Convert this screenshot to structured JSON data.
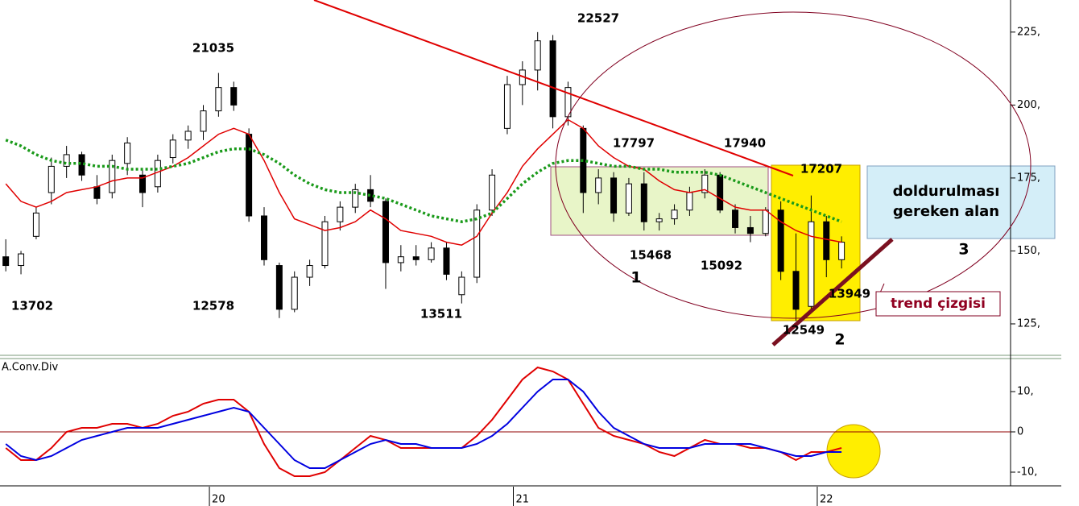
{
  "chart_data": [
    {
      "type": "candlestick",
      "x": [
        19.33,
        19.38,
        19.43,
        19.48,
        19.53,
        19.58,
        19.63,
        19.68,
        19.73,
        19.78,
        19.83,
        19.88,
        19.93,
        19.98,
        20.03,
        20.08,
        20.13,
        20.18,
        20.23,
        20.28,
        20.33,
        20.38,
        20.43,
        20.48,
        20.53,
        20.58,
        20.63,
        20.68,
        20.73,
        20.78,
        20.83,
        20.88,
        20.93,
        20.98,
        21.03,
        21.08,
        21.13,
        21.18,
        21.23,
        21.28,
        21.33,
        21.38,
        21.43,
        21.48,
        21.53,
        21.58,
        21.63,
        21.68,
        21.73,
        21.78,
        21.83,
        21.88,
        21.93,
        21.98,
        22.03,
        22.08
      ],
      "open": [
        148,
        145,
        155,
        170,
        179,
        183,
        172,
        170,
        180,
        176,
        172,
        182,
        188,
        191,
        198,
        206,
        190,
        162,
        145,
        130,
        141,
        145,
        160,
        165,
        171,
        167,
        146,
        148,
        147,
        151,
        135,
        141,
        164,
        192,
        207,
        212,
        222,
        196,
        192,
        170,
        175,
        163,
        173,
        160,
        161,
        164,
        170,
        176,
        164,
        158,
        156,
        164,
        143,
        131,
        160,
        147
      ],
      "high": [
        154,
        150,
        165,
        182,
        186,
        184,
        176,
        183,
        189,
        178,
        183,
        190,
        193,
        200,
        211,
        208,
        192,
        165,
        146,
        143,
        147,
        162,
        167,
        173,
        176,
        168,
        152,
        152,
        153,
        153,
        143,
        166,
        178,
        210,
        215,
        225,
        224,
        208,
        193,
        178,
        177,
        175,
        177,
        163,
        166,
        172,
        178,
        177,
        166,
        162,
        165,
        167,
        156,
        169,
        162,
        155
      ],
      "low": [
        143,
        142,
        154,
        166,
        175,
        174,
        166,
        168,
        176,
        165,
        170,
        180,
        185,
        188,
        196,
        198,
        160,
        145,
        127,
        129,
        138,
        144,
        157,
        163,
        165,
        137,
        143,
        145,
        146,
        140,
        132,
        139,
        162,
        190,
        200,
        205,
        192,
        193,
        163,
        166,
        160,
        162,
        157,
        157,
        159,
        162,
        168,
        163,
        156,
        153,
        155,
        140,
        126,
        130,
        141,
        144
      ],
      "close": [
        145,
        149,
        163,
        179,
        183,
        176,
        168,
        181,
        187,
        170,
        181,
        188,
        191,
        198,
        206,
        200,
        162,
        147,
        130,
        141,
        145,
        160,
        165,
        171,
        167,
        146,
        148,
        147,
        151,
        142,
        141,
        164,
        176,
        207,
        212,
        222,
        196,
        206,
        170,
        175,
        163,
        173,
        160,
        161,
        164,
        170,
        176,
        164,
        158,
        156,
        164,
        143,
        130,
        160,
        147,
        153
      ],
      "up_color": "#ffffff",
      "down_color": "#000000",
      "series": [
        {
          "color": "#e00000",
          "style": "solid",
          "values": [
            173,
            167,
            165,
            167,
            170,
            171,
            172,
            174,
            175,
            175,
            177,
            179,
            182,
            186,
            190,
            192,
            190,
            181,
            170,
            161,
            159,
            157,
            158,
            160,
            164,
            161,
            157,
            156,
            155,
            153,
            152,
            155,
            163,
            170,
            179,
            185,
            190,
            195,
            192,
            186,
            182,
            179,
            178,
            174,
            171,
            170,
            171,
            168,
            165,
            164,
            164,
            160,
            157,
            155,
            154,
            153
          ]
        },
        {
          "color": "#1a9a1a",
          "style": "dotted",
          "values": [
            188,
            186,
            183,
            181,
            180,
            180,
            179,
            179,
            178,
            178,
            178,
            179,
            180,
            182,
            184,
            185,
            185,
            183,
            180,
            176,
            173,
            171,
            170,
            170,
            169,
            168,
            166,
            164,
            162,
            161,
            160,
            161,
            163,
            168,
            173,
            177,
            180,
            181,
            181,
            180,
            179,
            179,
            178,
            178,
            177,
            177,
            177,
            176,
            174,
            172,
            170,
            168,
            166,
            164,
            162,
            160
          ]
        }
      ],
      "xlim": [
        19.311,
        22.636
      ],
      "ylim": [
        114.5,
        236
      ],
      "yticks": [
        {
          "value": 125,
          "label": "125,"
        },
        {
          "value": 150,
          "label": "150,"
        },
        {
          "value": 175,
          "label": "175,"
        },
        {
          "value": 200,
          "label": "200,"
        },
        {
          "value": 225,
          "label": "225,"
        }
      ],
      "annotations": [
        "22527",
        "21035",
        "17797",
        "17940",
        "17207",
        "15468",
        "15092",
        "13949",
        "13702",
        "12578",
        "13511",
        "12549",
        "1",
        "2",
        "3",
        "doldurulması",
        "gereken alan",
        "trend çizgisi"
      ]
    },
    {
      "type": "line",
      "title": "A.Conv.Div",
      "x": [
        19.33,
        19.38,
        19.43,
        19.48,
        19.53,
        19.58,
        19.63,
        19.68,
        19.73,
        19.78,
        19.83,
        19.88,
        19.93,
        19.98,
        20.03,
        20.08,
        20.13,
        20.18,
        20.23,
        20.28,
        20.33,
        20.38,
        20.43,
        20.48,
        20.53,
        20.58,
        20.63,
        20.68,
        20.73,
        20.78,
        20.83,
        20.88,
        20.93,
        20.98,
        21.03,
        21.08,
        21.13,
        21.18,
        21.23,
        21.28,
        21.33,
        21.38,
        21.43,
        21.48,
        21.53,
        21.58,
        21.63,
        21.68,
        21.73,
        21.78,
        21.83,
        21.88,
        21.93,
        21.98,
        22.03,
        22.08
      ],
      "series": [
        {
          "color": "#e00000",
          "values": [
            -4,
            -7,
            -7,
            -4,
            0,
            1,
            1,
            2,
            2,
            1,
            2,
            4,
            5,
            7,
            8,
            8,
            5,
            -3,
            -9,
            -11,
            -11,
            -10,
            -7,
            -4,
            -1,
            -2,
            -4,
            -4,
            -4,
            -4,
            -4,
            -1,
            3,
            8,
            13,
            16,
            15,
            13,
            7,
            1,
            -1,
            -2,
            -3,
            -5,
            -6,
            -4,
            -2,
            -3,
            -3,
            -4,
            -4,
            -5,
            -7,
            -5,
            -5,
            -4
          ]
        },
        {
          "color": "#0000e0",
          "values": [
            -3,
            -6,
            -7,
            -6,
            -4,
            -2,
            -1,
            0,
            1,
            1,
            1,
            2,
            3,
            4,
            5,
            6,
            5,
            1,
            -3,
            -7,
            -9,
            -9,
            -7,
            -5,
            -3,
            -2,
            -3,
            -3,
            -4,
            -4,
            -4,
            -3,
            -1,
            2,
            6,
            10,
            13,
            13,
            10,
            5,
            1,
            -1,
            -3,
            -4,
            -4,
            -4,
            -3,
            -3,
            -3,
            -3,
            -4,
            -5,
            -6,
            -6,
            -5,
            -5
          ]
        }
      ],
      "xlim": [
        19.311,
        22.636
      ],
      "ylim": [
        -13.2,
        17.6
      ],
      "yticks": [
        {
          "value": -10,
          "label": "-10,"
        },
        0,
        {
          "value": 10,
          "label": "10,"
        }
      ],
      "xticks": [
        20,
        21,
        22
      ]
    }
  ]
}
